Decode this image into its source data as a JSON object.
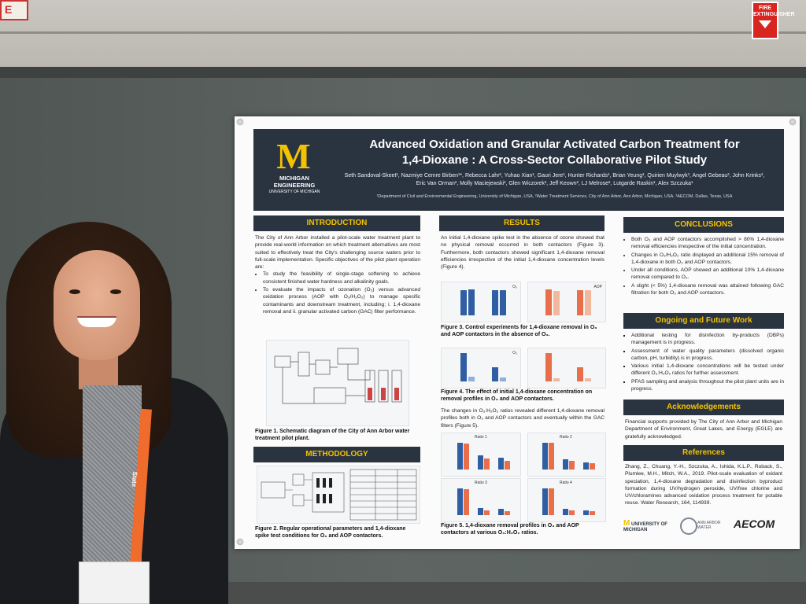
{
  "signs": {
    "fire_extinguisher": "FIRE EXTINGUISHER",
    "exit_letter": "E"
  },
  "poster": {
    "title_line1": "Advanced Oxidation and Granular Activated Carbon Treatment for",
    "title_line2": "1,4-Dioxane : A Cross-Sector Collaborative Pilot Study",
    "authors": "Seth Sandoval-Skeet¹, Nazmiye Cemre Birben¹*, Rebecca Lahr², Yuhao Xian¹, Gauri Jere¹, Hunter Richards¹, Brian Yeung¹, Quirien Muylwyk³, Angel Gebeau³, John Krinks³, Eric Van Orman², Molly Maciejewski², Glen Wiczorek², Jeff Keown², LJ Melrose², Lutgarde Raskin¹, Alex Szczuka¹",
    "affiliations": "¹Department of Civil and Environmental Engineering, University of Michigan, USA, ²Water Treatment Services, City of Ann Arbor, Ann Arbor, Michigan, USA, ³AECOM, Dallas, Texas, USA",
    "logo": {
      "letter": "M",
      "line1": "MICHIGAN",
      "line2": "ENGINEERING",
      "line3": "UNIVERSITY OF MICHIGAN"
    },
    "introduction": {
      "heading": "INTRODUCTION",
      "text": "The City of Ann Arbor installed a pilot-scale water treatment plant to provide real-world information on which treatment alternatives are most suited to effectively treat the City's challenging source waters prior to full-scale implementation. Specific objectives of the pilot plant operation are:",
      "bullet1": "To study the feasibility of single-stage softening to achieve consistent finished water hardness and alkalinity goals.",
      "bullet2": "To evaluate the impacts of ozonation (O₃) versus advanced oxidation process (AOP with O₃/H₂O₂) to manage specific contaminants and downstream treatment, including; i. 1,4-dioxane removal and ii. granular activated carbon (GAC) filter performance.",
      "fig1_caption": "Figure 1. Schematic diagram of the City of Ann Arbor water treatment pilot plant."
    },
    "methodology": {
      "heading": "METHODOLOGY",
      "fig2_caption": "Figure 2. Regular operational parameters and 1,4-dioxane spike test conditions for O₃ and AOP contactors."
    },
    "results": {
      "heading": "RESULTS",
      "text1": "An initial 1,4-dioxane spike test in the absence of ozone showed that no physical removal occurred in both contactors (Figure 3). Furthermore, both contactors showed significant 1,4-dioxane removal efficiencies irrespective of the initial 1,4-dioxane concentration levels (Figure 4).",
      "fig3_caption": "Figure 3. Control experiments for 1,4-dioxane removal in O₃ and AOP contactors in the absence of O₃.",
      "fig4_caption": "Figure 4. The effect of initial 1,4-dioxane concentration on removal profiles in O₃ and AOP contactors.",
      "text2": "The changes in O₃:H₂O₂ ratios revealed different 1,4-dioxane removal profiles both in O₃ and AOP contactors and eventually within the GAC filters (Figure 5).",
      "fig5_caption": "Figure 5. 1,4-dioxane removal profiles in O₃ and AOP contactors at various O₃:H₂O₂ ratios.",
      "panel_o3": "O₃",
      "panel_aop": "AOP",
      "ratio1": "Ratio 1",
      "ratio2": "Ratio 2",
      "ratio3": "Ratio 3",
      "ratio4": "Ratio 4"
    },
    "conclusions": {
      "heading": "CONCLUSIONS",
      "b1": "Both O₃ and AOP contactors accomplished > 80% 1,4-dioxane removal efficiencies irrespective of the initial concentration.",
      "b2": "Changes in O₃/H₂O₂ ratio displayed an additional 15% removal of 1,4-dioxane in both O₃ and AOP contactors.",
      "b3": "Under all conditions, AOP showed an additional 10% 1,4-dioxane removal compared to O₃.",
      "b4": "A slight (< 5%) 1,4-dioxane removal was attained following GAC filtration for both O₃ and AOP contactors."
    },
    "future": {
      "heading": "Ongoing and Future Work",
      "b1": "Additional testing for disinfection by-products (DBPs) management is in progress.",
      "b2": "Assessment of water quality parameters (dissolved organic carbon, pH, turbidity) is in progress.",
      "b3": "Various initial 1,4-dioxane concentrations will be tested under different O₃:H₂O₂ ratios for further assessment.",
      "b4": "PFAS sampling and analysis throughout the pilot plant units are in progress."
    },
    "acknowledgements": {
      "heading": "Acknowledgements",
      "text": "Financial supports provided by The City of Ann Arbor and Michigan Department of Environment, Great Lakes, and Energy (EGLE) are gratefully acknowledged."
    },
    "references": {
      "heading": "References",
      "text": "Zhang, Z., Chuang, Y.-H., Szczuka, A., Ishida, K.L.P., Roback, S., Plumlee, M.H., Mitch, W.A., 2019. Pilot-scale evaluation of oxidant speciation, 1,4-dioxane degradation and disinfection byproduct formation during UV/hydrogen peroxide, UV/free chlorine and UV/chloramines advanced oxidation process treatment for potable reuse. Water Research, 164, 114939."
    },
    "footer_logos": {
      "umich": "UNIVERSITY OF MICHIGAN",
      "annarbor": "ANN ARBOR WATER",
      "aecom": "AECOM"
    }
  },
  "lanyard": "State"
}
